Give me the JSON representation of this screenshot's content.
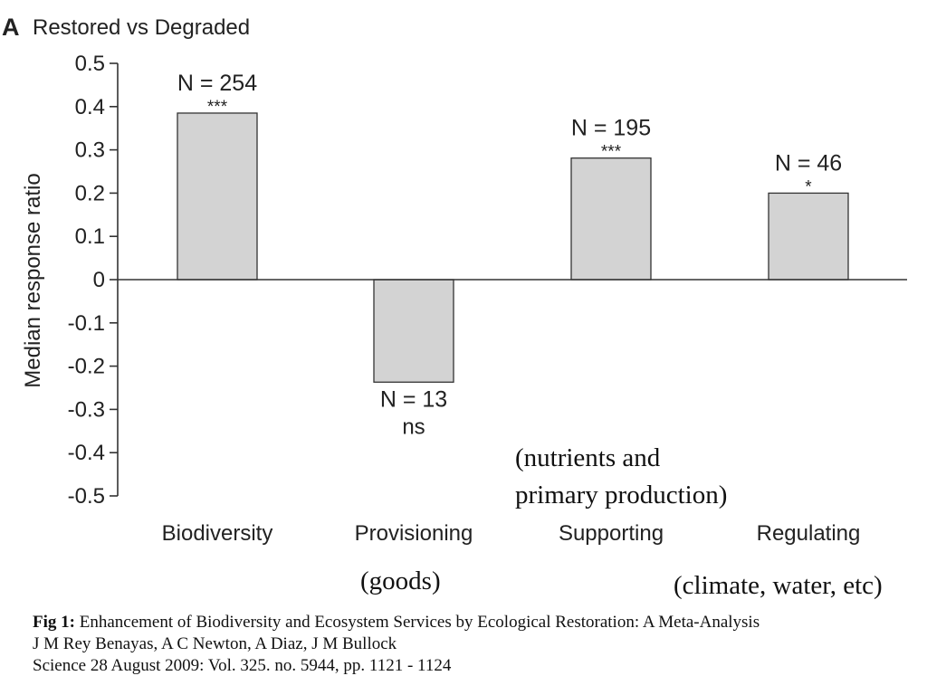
{
  "chart_data": {
    "type": "bar",
    "panel_letter": "A",
    "title": "Restored vs Degraded",
    "ylabel": "Median response ratio",
    "xlabel": "",
    "ylim": [
      -0.5,
      0.5
    ],
    "yticks": [
      "0.5",
      "0.4",
      "0.3",
      "0.2",
      "0.1",
      "0",
      "-0.1",
      "-0.2",
      "-0.3",
      "-0.4",
      "-0.5"
    ],
    "categories": [
      "Biodiversity",
      "Provisioning",
      "Supporting",
      "Regulating"
    ],
    "values": [
      0.385,
      -0.237,
      0.281,
      0.2
    ],
    "n_labels": [
      "N = 254",
      "N = 13",
      "N = 195",
      "N = 46"
    ],
    "significance": [
      "***",
      "ns",
      "***",
      "*"
    ],
    "bar_color": "#d3d3d3",
    "grid": false,
    "annotations": {
      "provisioning": "(goods)",
      "supporting": [
        "(nutrients and",
        "primary production)"
      ],
      "regulating": "(climate, water, etc)"
    }
  },
  "caption": {
    "fig_label": "Fig 1:",
    "title": " Enhancement of Biodiversity and Ecosystem Services by Ecological Restoration: A Meta-Analysis",
    "authors": "J M Rey Benayas, A C Newton, A Diaz, J M Bullock",
    "citation": "Science 28 August 2009:  Vol. 325. no. 5944, pp. 1121 - 1124"
  }
}
